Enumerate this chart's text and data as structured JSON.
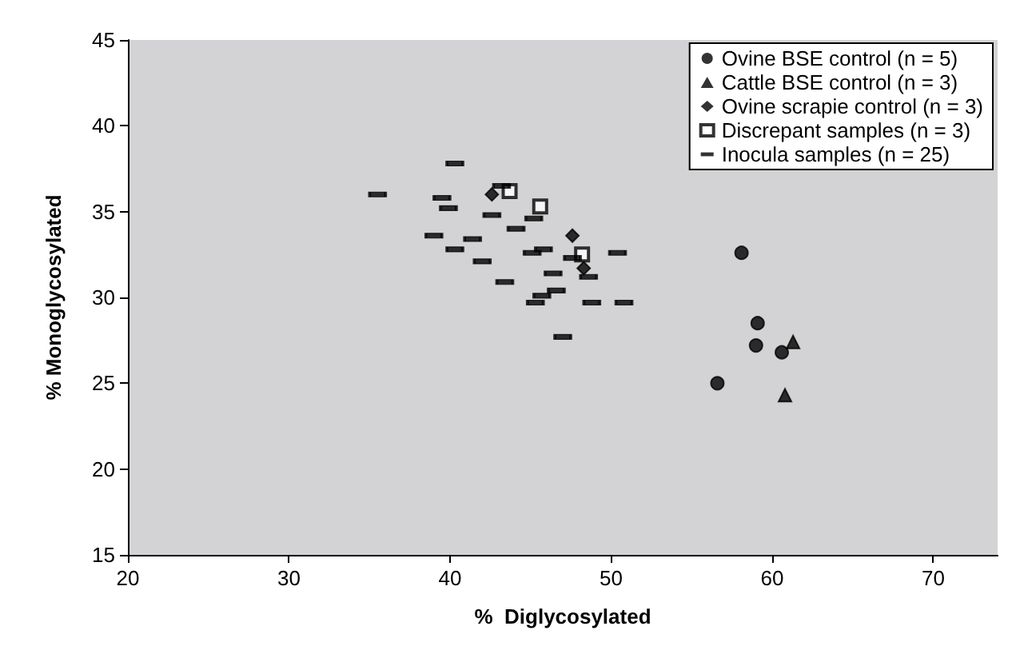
{
  "chart_data": {
    "type": "scatter",
    "xlabel": "%  Diglycosylated",
    "ylabel": "% Monoglycosylated",
    "xlim": [
      20,
      74
    ],
    "xticks": [
      20,
      30,
      40,
      50,
      60,
      70
    ],
    "ylim": [
      15,
      45
    ],
    "yticks": [
      15,
      20,
      25,
      30,
      35,
      40,
      45
    ],
    "grid": false,
    "legend": "top right",
    "series": [
      {
        "name": "Ovine BSE control (n = 5)",
        "color": "#000000",
        "marker": "circle",
        "x": [
          58.1,
          59.1,
          59.0,
          60.6,
          56.6
        ],
        "values": [
          32.6,
          28.5,
          27.2,
          26.8,
          25.0
        ]
      },
      {
        "name": "Cattle BSE control (n = 3)",
        "color": "#000000",
        "marker": "triangle",
        "x": [
          61.3,
          60.8,
          null
        ],
        "values": [
          27.4,
          24.3,
          null
        ]
      },
      {
        "name": "Ovine scrapie control (n = 3)",
        "color": "#000000",
        "marker": "diamond",
        "x": [
          42.6,
          47.6,
          48.3
        ],
        "values": [
          36.0,
          33.6,
          31.7
        ]
      },
      {
        "name": "Discrepant samples (n = 3)",
        "color": "#000000",
        "marker": "square",
        "x": [
          43.7,
          45.6,
          48.2
        ],
        "values": [
          36.2,
          35.3,
          32.5
        ]
      },
      {
        "name": "Inocula samples (n = 25)",
        "color": "#000000",
        "x": [
          35.5,
          40.3,
          39.5,
          39.9,
          43.2,
          42.6,
          45.2,
          44.1,
          39.0,
          40.3,
          41.4,
          42.0,
          43.4,
          45.1,
          45.8,
          46.4,
          46.6,
          45.7,
          45.3,
          47.0,
          47.6,
          48.6,
          48.8,
          50.4,
          50.8
        ],
        "values": [
          36.0,
          37.8,
          35.8,
          35.2,
          36.5,
          34.8,
          34.6,
          34.0,
          33.6,
          32.8,
          33.4,
          32.1,
          30.9,
          32.6,
          32.8,
          31.4,
          30.4,
          30.1,
          29.7,
          27.7,
          32.3,
          31.2,
          29.7,
          32.6,
          29.7
        ]
      }
    ]
  }
}
